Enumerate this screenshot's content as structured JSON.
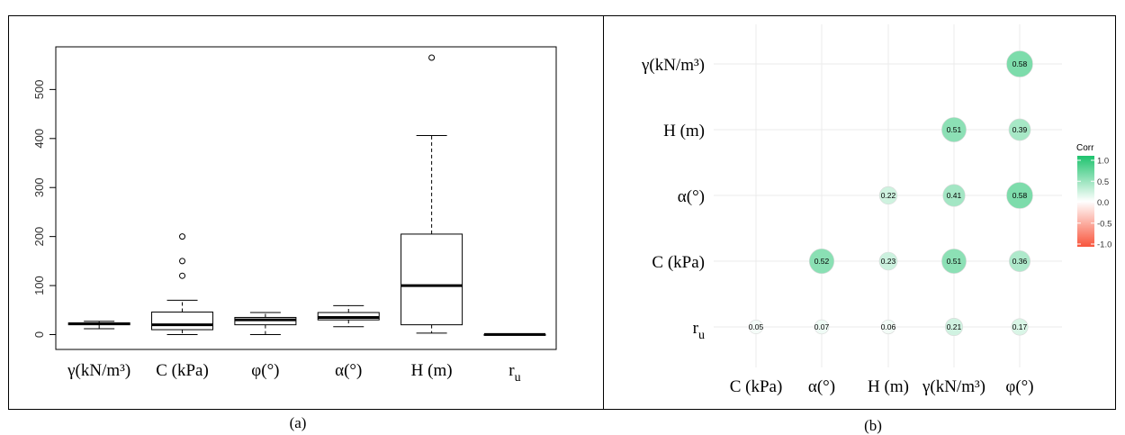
{
  "panel_labels": [
    "(a)",
    "(b)"
  ],
  "colors": {
    "axis": "#000000",
    "positive": "#1ec36e",
    "zero": "#ffffff",
    "negative": "#f8553c",
    "grid": "#ebebeb"
  },
  "chart_data": [
    {
      "type": "boxplot",
      "panel": "(a)",
      "categories": [
        "γ(kN/m³)",
        "C (kPa)",
        "φ(°)",
        "α(°)",
        "H (m)",
        "r_u"
      ],
      "y_ticks": [
        0,
        100,
        200,
        300,
        400,
        500
      ],
      "ylim": [
        0,
        565
      ],
      "boxes": [
        {
          "label": "γ(kN/m³)",
          "whisker_low": 12,
          "q1": 20,
          "median": 22,
          "q3": 24,
          "whisker_high": 27,
          "outliers": []
        },
        {
          "label": "C (kPa)",
          "whisker_low": 0,
          "q1": 10,
          "median": 20,
          "q3": 46,
          "whisker_high": 70,
          "outliers": [
            120,
            150,
            200
          ]
        },
        {
          "label": "φ(°)",
          "whisker_low": 0,
          "q1": 20,
          "median": 30,
          "q3": 35,
          "whisker_high": 45,
          "outliers": []
        },
        {
          "label": "α(°)",
          "whisker_low": 16,
          "q1": 30,
          "median": 35,
          "q3": 45,
          "whisker_high": 59,
          "outliers": []
        },
        {
          "label": "H (m)",
          "whisker_low": 3,
          "q1": 20,
          "median": 100,
          "q3": 205,
          "whisker_high": 406,
          "outliers": [
            565
          ]
        },
        {
          "label": "r_u",
          "whisker_low": 0,
          "q1": 0.1,
          "median": 0.25,
          "q3": 0.35,
          "whisker_high": 0.5,
          "outliers": []
        }
      ]
    },
    {
      "type": "heatmap",
      "panel": "(b)",
      "x_labels": [
        "C (kPa)",
        "α(°)",
        "H (m)",
        "γ(kN/m³)",
        "φ(°)"
      ],
      "y_labels": [
        "γ(kN/m³)",
        "H (m)",
        "α(°)",
        "C (kPa)",
        "r_u"
      ],
      "legend": {
        "title": "Corr",
        "ticks": [
          "1.0",
          "0.5",
          "0.0",
          "-0.5",
          "-1.0"
        ],
        "range": [
          -1,
          1
        ]
      },
      "cells": [
        {
          "row": "γ(kN/m³)",
          "col": "φ(°)",
          "value": 0.58,
          "label": "0.58"
        },
        {
          "row": "H (m)",
          "col": "γ(kN/m³)",
          "value": 0.51,
          "label": "0.51"
        },
        {
          "row": "H (m)",
          "col": "φ(°)",
          "value": 0.39,
          "label": "0.39"
        },
        {
          "row": "α(°)",
          "col": "H (m)",
          "value": 0.22,
          "label": "0.22"
        },
        {
          "row": "α(°)",
          "col": "γ(kN/m³)",
          "value": 0.41,
          "label": "0.41"
        },
        {
          "row": "α(°)",
          "col": "φ(°)",
          "value": 0.58,
          "label": "0.58"
        },
        {
          "row": "C (kPa)",
          "col": "α(°)",
          "value": 0.52,
          "label": "0.52"
        },
        {
          "row": "C (kPa)",
          "col": "H (m)",
          "value": 0.23,
          "label": "0.23"
        },
        {
          "row": "C (kPa)",
          "col": "γ(kN/m³)",
          "value": 0.51,
          "label": "0.51"
        },
        {
          "row": "C (kPa)",
          "col": "φ(°)",
          "value": 0.36,
          "label": "0.36"
        },
        {
          "row": "r_u",
          "col": "C (kPa)",
          "value": 0.05,
          "label": "0.05"
        },
        {
          "row": "r_u",
          "col": "α(°)",
          "value": 0.07,
          "label": "0.07"
        },
        {
          "row": "r_u",
          "col": "H (m)",
          "value": 0.06,
          "label": "0.06"
        },
        {
          "row": "r_u",
          "col": "γ(kN/m³)",
          "value": 0.21,
          "label": "0.21"
        },
        {
          "row": "r_u",
          "col": "φ(°)",
          "value": 0.17,
          "label": "0.17"
        }
      ]
    }
  ]
}
